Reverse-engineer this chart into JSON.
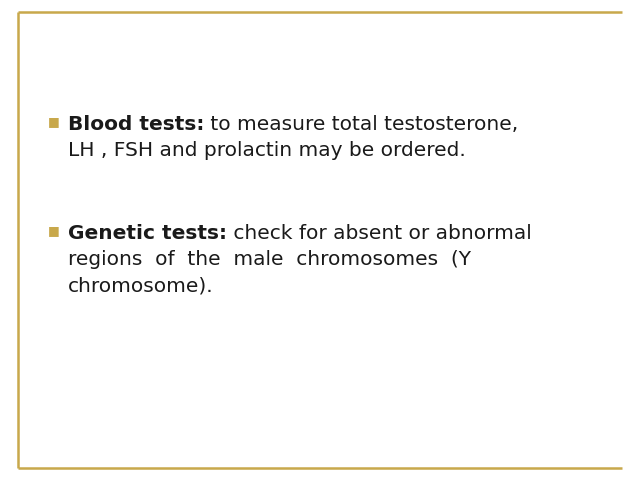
{
  "background_color": "#ffffff",
  "border_color": "#C8A84B",
  "border_linewidth": 1.8,
  "bullet_color": "#C8A84B",
  "text_color": "#1a1a1a",
  "font_size": 14.5,
  "figsize": [
    6.4,
    4.8
  ],
  "dpi": 100,
  "item1_bold": "Blood tests:",
  "item1_line1_normal": " to measure total testosterone,",
  "item1_line2": "LH , FSH and prolactin may be ordered.",
  "item2_bold": "Genetic tests:",
  "item2_line1_normal": " check for absent or abnormal",
  "item2_line2": "regions  of  the  male  chromosomes  (Y",
  "item2_line3": "chromosome)."
}
